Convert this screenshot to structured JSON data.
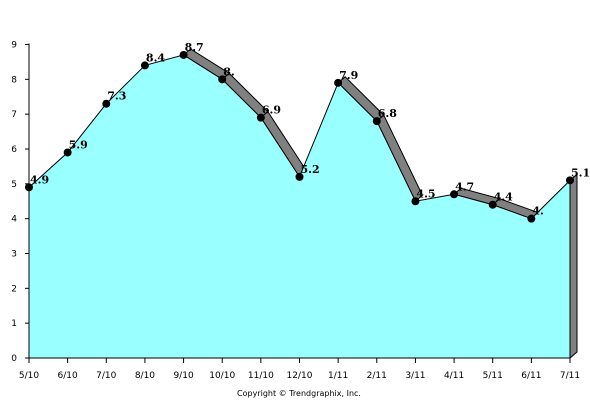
{
  "chart_data": {
    "type": "area",
    "categories": [
      "5/10",
      "6/10",
      "7/10",
      "8/10",
      "9/10",
      "10/10",
      "11/10",
      "12/10",
      "1/11",
      "2/11",
      "3/11",
      "4/11",
      "5/11",
      "6/11",
      "7/11"
    ],
    "values": [
      4.9,
      5.9,
      7.3,
      8.4,
      8.7,
      8.0,
      6.9,
      5.2,
      7.9,
      6.8,
      4.5,
      4.7,
      4.4,
      4.0,
      5.1
    ],
    "data_labels": [
      "4.9",
      "5.9",
      "7.3",
      "8.4",
      "8.7",
      "8.",
      "6.9",
      "5.2",
      "7.9",
      "6.8",
      "4.5",
      "4.7",
      "4.4",
      "4.",
      "5.1"
    ],
    "y_ticks": [
      "0",
      "1",
      "2",
      "3",
      "4",
      "5",
      "6",
      "7",
      "8",
      "9"
    ],
    "ylim": [
      0,
      9
    ],
    "grid": false,
    "legend": "none",
    "colors": {
      "area_fill": "#99ffff",
      "area_outline": "#000000",
      "decline_ribbon": "#808080",
      "marker": "#000000",
      "axis": "#000000"
    }
  },
  "footer": {
    "credit": "Copyright © Trendgraphix, Inc."
  }
}
